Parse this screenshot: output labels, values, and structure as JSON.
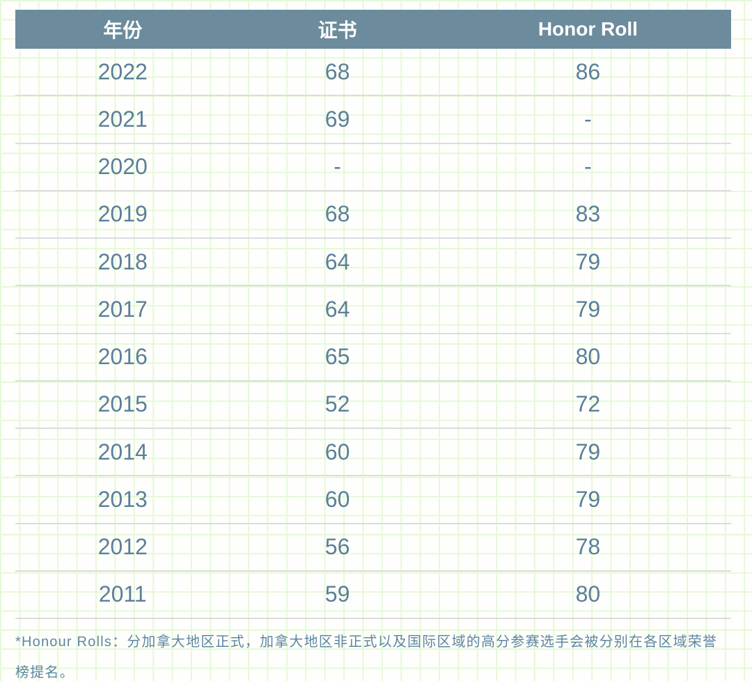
{
  "table": {
    "columns": [
      {
        "key": "year",
        "label": "年份"
      },
      {
        "key": "certificate",
        "label": "证书"
      },
      {
        "key": "honor_roll",
        "label": "Honor Roll"
      }
    ],
    "rows": [
      {
        "year": "2022",
        "certificate": "68",
        "honor_roll": "86"
      },
      {
        "year": "2021",
        "certificate": "69",
        "honor_roll": "-"
      },
      {
        "year": "2020",
        "certificate": "-",
        "honor_roll": "-"
      },
      {
        "year": "2019",
        "certificate": "68",
        "honor_roll": "83"
      },
      {
        "year": "2018",
        "certificate": "64",
        "honor_roll": "79"
      },
      {
        "year": "2017",
        "certificate": "64",
        "honor_roll": "79"
      },
      {
        "year": "2016",
        "certificate": "65",
        "honor_roll": "80"
      },
      {
        "year": "2015",
        "certificate": "52",
        "honor_roll": "72"
      },
      {
        "year": "2014",
        "certificate": "60",
        "honor_roll": "79"
      },
      {
        "year": "2013",
        "certificate": "60",
        "honor_roll": "79"
      },
      {
        "year": "2012",
        "certificate": "56",
        "honor_roll": "78"
      },
      {
        "year": "2011",
        "certificate": "59",
        "honor_roll": "80"
      }
    ]
  },
  "footnote": "*Honour Rolls：分加拿大地区正式，加拿大地区非正式以及国际区域的高分参赛选手会被分别在各区域荣誉榜提名。",
  "colors": {
    "header_background": "#6c8c9d",
    "header_text": "#ffffff",
    "body_text": "#5b7f98",
    "row_divider": "#dcdcdc",
    "grid_line": "#e6f8d8",
    "page_background": "#fefffc"
  }
}
